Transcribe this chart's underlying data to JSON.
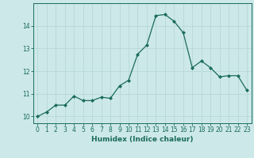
{
  "x": [
    0,
    1,
    2,
    3,
    4,
    5,
    6,
    7,
    8,
    9,
    10,
    11,
    12,
    13,
    14,
    15,
    16,
    17,
    18,
    19,
    20,
    21,
    22,
    23
  ],
  "y": [
    10.0,
    10.2,
    10.5,
    10.5,
    10.9,
    10.7,
    10.7,
    10.85,
    10.8,
    11.35,
    11.6,
    12.75,
    13.15,
    14.45,
    14.5,
    14.2,
    13.7,
    12.15,
    12.45,
    12.15,
    11.75,
    11.8,
    11.8,
    11.15
  ],
  "line_color": "#1a6b5a",
  "marker": "D",
  "marker_size": 2,
  "bg_color": "#cce8e8",
  "grid_color": "#b8d8d8",
  "xlabel": "Humidex (Indice chaleur)",
  "xlim": [
    -0.5,
    23.5
  ],
  "ylim": [
    9.7,
    15.0
  ],
  "yticks": [
    10,
    11,
    12,
    13,
    14
  ],
  "xticks": [
    0,
    1,
    2,
    3,
    4,
    5,
    6,
    7,
    8,
    9,
    10,
    11,
    12,
    13,
    14,
    15,
    16,
    17,
    18,
    19,
    20,
    21,
    22,
    23
  ],
  "tick_color": "#1a6b5a",
  "label_fontsize": 6.5,
  "tick_fontsize": 5.5,
  "linewidth": 0.9
}
